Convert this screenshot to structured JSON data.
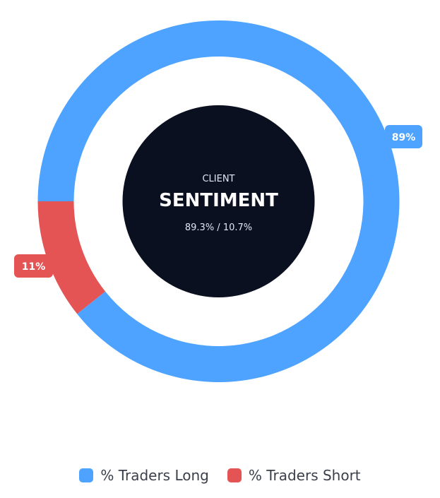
{
  "chart_data": {
    "type": "pie",
    "variant": "donut",
    "categories": [
      "% Traders Long",
      "% Traders Short"
    ],
    "values": [
      89.3,
      10.7
    ],
    "slice_labels": [
      "89%",
      "11%"
    ],
    "colors": [
      "#4da3ff",
      "#e45454"
    ],
    "legend_position": "bottom-center",
    "center": {
      "kicker": "CLIENT",
      "title": "SENTIMENT",
      "subtitle": "89.3% / 10.7%",
      "background": "#0b1020"
    }
  }
}
